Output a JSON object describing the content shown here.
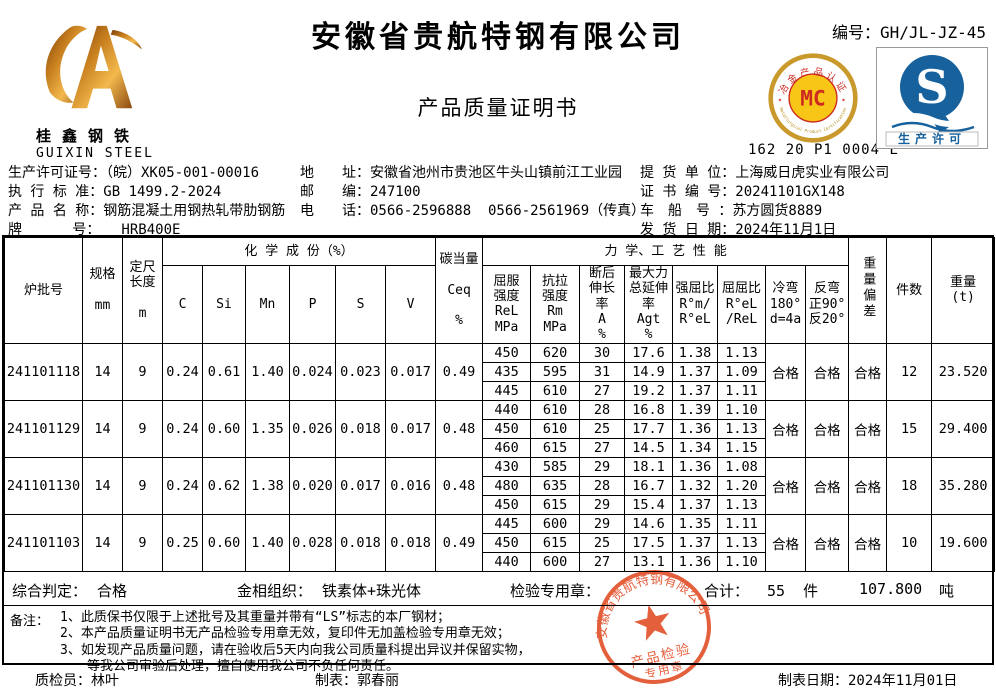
{
  "header": {
    "company": "安徽省贵航特钢有限公司",
    "doc_title": "产品质量证明书",
    "doc_no": "编号：GH/JL-JZ-45",
    "logo": {
      "cn": "桂鑫钢铁",
      "en": "GUIXIN STEEL"
    },
    "mc_cert": {
      "arc_top": "冶金产品认证",
      "letters": "MC",
      "arc_bottom": "Metallurgical Product Certification",
      "serial": "162 20 P1 0004 L"
    },
    "qs_mark": {
      "letter": "S",
      "label": "生产许可"
    }
  },
  "info": {
    "col1": [
      "生产许可证号：（皖）XK05-001-00016",
      "执 行 标 准：GB 1499.2-2024",
      "产 品 名 称：钢筋混凝土用钢热轧带肋钢筋",
      "牌　　　 号：　　HRB400E"
    ],
    "col2": [
      "地　　址：安徽省池州市贵池区牛头山镇前江工业园",
      "邮　　编：247100",
      "电　　话：0566-2596888  0566-2561969（传真）"
    ],
    "col3": [
      "提 货 单 位：上海威日虎实业有限公司",
      "证 书 编 号：20241101GX148",
      "车　船　号 ：苏方圆货8889",
      "发 货 日 期：2024年11月1日"
    ]
  },
  "table": {
    "cols": {
      "batch": "炉批号",
      "size": "规格\n\nmm",
      "length": "定尺\n长度\n\nm",
      "chem_group": "化 学 成 份（%）",
      "chem": [
        "C",
        "Si",
        "Mn",
        "P",
        "S",
        "V"
      ],
      "ceq": "碳当量\n\nCeq\n\n%",
      "mech_group": "力 学、工 艺 性 能",
      "mech": [
        "屈服\n强度\nReL\nMPa",
        "抗拉\n强度\nRm\nMPa",
        "断后\n伸长\n率\nA\n%",
        "最大力\n总延伸\n率\nAgt\n%",
        "强屈比\nR°m/\nR°eL",
        "屈屈比\nR°eL\n/ReL",
        "冷弯\n180°\nd=4a",
        "反弯\n正90°\n反20°"
      ],
      "weight_dev": "重量偏差",
      "pieces": "件数",
      "weight": "重量\n(t)"
    },
    "chem_keys": [
      "C",
      "Si",
      "Mn",
      "P",
      "S",
      "V"
    ],
    "rows": [
      {
        "batch": "241101118",
        "size": "14",
        "length": "9",
        "chem": [
          "0.24",
          "0.61",
          "1.40",
          "0.024",
          "0.023",
          "0.017"
        ],
        "ceq": "0.49",
        "mech": [
          [
            "450",
            "620",
            "30",
            "17.6",
            "1.38",
            "1.13"
          ],
          [
            "435",
            "595",
            "31",
            "14.9",
            "1.37",
            "1.09"
          ],
          [
            "445",
            "610",
            "27",
            "19.2",
            "1.37",
            "1.11"
          ]
        ],
        "cold_bend": "合格",
        "re_bend": "合格",
        "weight_dev": "合格",
        "pieces": "12",
        "weight": "23.520"
      },
      {
        "batch": "241101129",
        "size": "14",
        "length": "9",
        "chem": [
          "0.24",
          "0.60",
          "1.35",
          "0.026",
          "0.018",
          "0.017"
        ],
        "ceq": "0.48",
        "mech": [
          [
            "440",
            "610",
            "28",
            "16.8",
            "1.39",
            "1.10"
          ],
          [
            "450",
            "610",
            "25",
            "17.7",
            "1.36",
            "1.13"
          ],
          [
            "460",
            "615",
            "27",
            "14.5",
            "1.34",
            "1.15"
          ]
        ],
        "cold_bend": "合格",
        "re_bend": "合格",
        "weight_dev": "合格",
        "pieces": "15",
        "weight": "29.400"
      },
      {
        "batch": "241101130",
        "size": "14",
        "length": "9",
        "chem": [
          "0.24",
          "0.62",
          "1.38",
          "0.020",
          "0.017",
          "0.016"
        ],
        "ceq": "0.48",
        "mech": [
          [
            "430",
            "585",
            "29",
            "18.1",
            "1.36",
            "1.08"
          ],
          [
            "480",
            "635",
            "28",
            "16.7",
            "1.32",
            "1.20"
          ],
          [
            "450",
            "615",
            "29",
            "15.4",
            "1.37",
            "1.13"
          ]
        ],
        "cold_bend": "合格",
        "re_bend": "合格",
        "weight_dev": "合格",
        "pieces": "18",
        "weight": "35.280"
      },
      {
        "batch": "241101103",
        "size": "14",
        "length": "9",
        "chem": [
          "0.25",
          "0.60",
          "1.40",
          "0.028",
          "0.018",
          "0.018"
        ],
        "ceq": "0.49",
        "mech": [
          [
            "445",
            "600",
            "29",
            "14.6",
            "1.35",
            "1.11"
          ],
          [
            "450",
            "615",
            "25",
            "17.5",
            "1.37",
            "1.13"
          ],
          [
            "440",
            "600",
            "27",
            "13.1",
            "1.36",
            "1.10"
          ]
        ],
        "cold_bend": "合格",
        "re_bend": "合格",
        "weight_dev": "合格",
        "pieces": "10",
        "weight": "19.600"
      }
    ]
  },
  "summary": {
    "judge_label": "综合判定：",
    "judge": "合格",
    "structure_label": "金相组织：",
    "structure": "铁素体+珠光体",
    "stamp_label": "检验专用章：",
    "total_label": "合计：",
    "total_pieces": "55  件",
    "total_weight": "107.800",
    "total_unit": "吨"
  },
  "remarks": {
    "label": "备注：",
    "lines": [
      "1、此质保书仅限于上述批号及其重量并带有“LS”标志的本厂钢材；",
      "2、本产品质量证明书无产品检验专用章无效，复印件无加盖检验专用章无效；",
      "3、如发现产品质量问题，请在验收后5天内向我公司质量科提出异议并保留实物，",
      "等我公司审验后处理，擅自使用我公司不负任何责任。"
    ]
  },
  "footer": {
    "inspector": "质检员：林叶",
    "tabulator": "制表：郭春丽",
    "date": "制表日期：2024年11月01日"
  },
  "stamp": {
    "company_arc": "安徽省贵航特钢有限公司",
    "line1": "产品检验",
    "line2": "专用章",
    "color": "#e2512b"
  }
}
